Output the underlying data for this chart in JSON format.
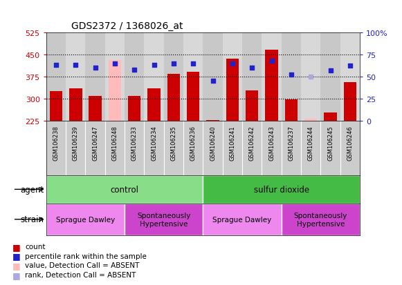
{
  "title": "GDS2372 / 1368026_at",
  "samples": [
    "GSM106238",
    "GSM106239",
    "GSM106247",
    "GSM106248",
    "GSM106233",
    "GSM106234",
    "GSM106235",
    "GSM106236",
    "GSM106240",
    "GSM106241",
    "GSM106242",
    "GSM106243",
    "GSM106237",
    "GSM106244",
    "GSM106245",
    "GSM106246"
  ],
  "counts": [
    325,
    335,
    308,
    430,
    310,
    335,
    383,
    390,
    228,
    435,
    327,
    465,
    297,
    232,
    254,
    355
  ],
  "ranks": [
    63,
    63,
    60,
    65,
    58,
    63,
    65,
    65,
    45,
    65,
    60,
    68,
    52,
    50,
    57,
    62
  ],
  "absent_count_indices": [
    3,
    13
  ],
  "absent_rank_indices": [
    13
  ],
  "count_baseline": 225,
  "ylim_left": [
    225,
    525
  ],
  "ylim_right": [
    0,
    100
  ],
  "yticks_left": [
    225,
    300,
    375,
    450,
    525
  ],
  "yticks_right": [
    0,
    25,
    50,
    75,
    100
  ],
  "hgrid_at": [
    300,
    375,
    450
  ],
  "bar_color_normal": "#cc0000",
  "bar_color_absent": "#ffbbbb",
  "rank_color_normal": "#2222cc",
  "rank_color_absent": "#aaaadd",
  "tick_color_left": "#cc0000",
  "tick_color_right": "#2222cc",
  "agent_groups": [
    {
      "label": "control",
      "start": 0,
      "end": 8,
      "color": "#88dd88"
    },
    {
      "label": "sulfur dioxide",
      "start": 8,
      "end": 16,
      "color": "#44bb44"
    }
  ],
  "strain_groups": [
    {
      "label": "Sprague Dawley",
      "start": 0,
      "end": 4,
      "color": "#ee88ee"
    },
    {
      "label": "Spontaneously\nHypertensive",
      "start": 4,
      "end": 8,
      "color": "#cc44cc"
    },
    {
      "label": "Sprague Dawley",
      "start": 8,
      "end": 12,
      "color": "#ee88ee"
    },
    {
      "label": "Spontaneously\nHypertensive",
      "start": 12,
      "end": 16,
      "color": "#cc44cc"
    }
  ],
  "xtick_bg_color": "#cccccc",
  "legend_items": [
    {
      "color": "#cc0000",
      "label": "count",
      "marker": "square"
    },
    {
      "color": "#2222cc",
      "label": "percentile rank within the sample",
      "marker": "square"
    },
    {
      "color": "#ffbbbb",
      "label": "value, Detection Call = ABSENT",
      "marker": "square"
    },
    {
      "color": "#aaaadd",
      "label": "rank, Detection Call = ABSENT",
      "marker": "square"
    }
  ]
}
